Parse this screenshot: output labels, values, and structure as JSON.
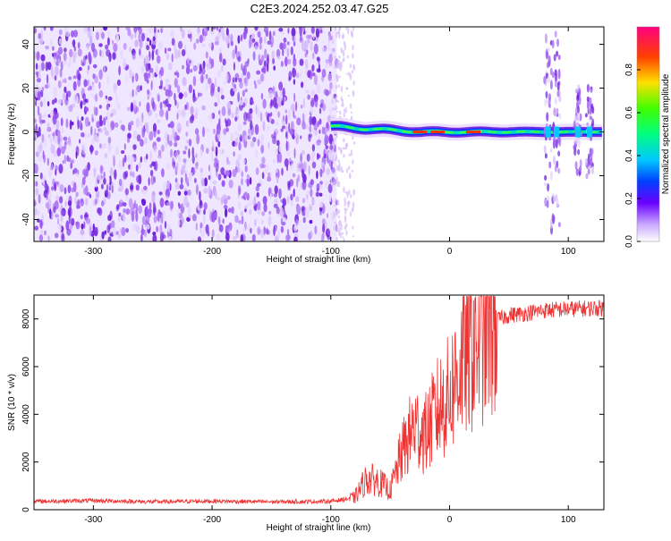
{
  "title": "C2E3.2024.252.03.47.G25",
  "colors": {
    "snr_line": "#ee3333",
    "spectrogram_noise": "#7a2fe0",
    "spectrogram_line": "#00c8ff"
  },
  "chart_data": [
    {
      "type": "heatmap",
      "xlabel": "Height of straight line (km)",
      "ylabel": "Frequency (Hz)",
      "xlim": [
        -350,
        130
      ],
      "ylim": [
        -50,
        48
      ],
      "xticks": [
        -300,
        -200,
        -100,
        0,
        100
      ],
      "yticks": [
        -40,
        -20,
        0,
        20,
        40
      ],
      "colorbar": {
        "label": "Normalized spectral amplitude",
        "range": [
          0,
          1
        ],
        "ticks": [
          0.0,
          0.2,
          0.4,
          0.6,
          0.8
        ],
        "colormap": "rainbow"
      },
      "features": {
        "noise_region_x": [
          -350,
          -95
        ],
        "carrier_frequency_hz": 0,
        "carrier_start_x": -100,
        "carrier_end_x": 130,
        "bursts_x": [
          83,
          90,
          108,
          118
        ]
      },
      "grid": false
    },
    {
      "type": "line",
      "xlabel": "Height of straight line (km)",
      "ylabel": "SNR (10 * v/v)",
      "xlim": [
        -350,
        130
      ],
      "ylim": [
        0,
        9000
      ],
      "xticks": [
        -300,
        -200,
        -100,
        0,
        100
      ],
      "yticks": [
        0,
        2000,
        4000,
        6000,
        8000
      ],
      "series": [
        {
          "x": [
            -350,
            -300,
            -250,
            -200,
            -150,
            -100,
            -80,
            -70,
            -60,
            -50,
            -40,
            -30,
            -20,
            -10,
            0,
            10,
            20,
            30,
            40,
            50,
            60,
            80,
            100,
            130
          ],
          "values": [
            350,
            380,
            330,
            360,
            330,
            350,
            500,
            1300,
            1200,
            800,
            2400,
            3500,
            3200,
            4200,
            4800,
            6200,
            7000,
            7700,
            8100,
            8300,
            8350,
            8500,
            8550,
            8600
          ]
        }
      ],
      "grid": false
    }
  ]
}
